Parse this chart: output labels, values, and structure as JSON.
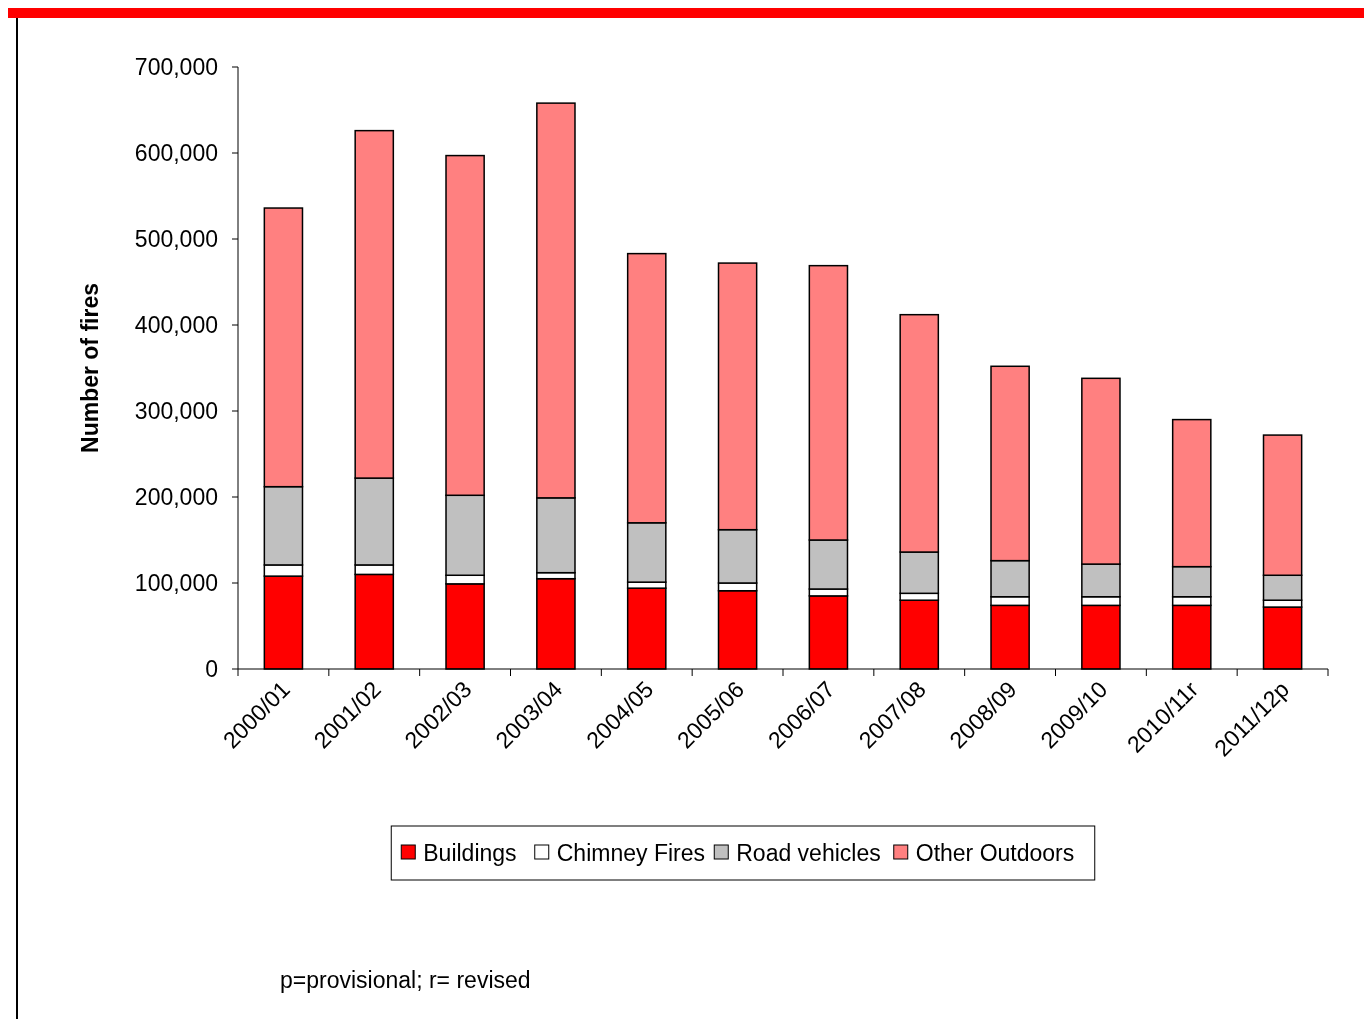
{
  "chart_data": {
    "type": "bar",
    "stacked": true,
    "ylabel": "Number of fires",
    "categories": [
      "2000/01",
      "2001/02",
      "2002/03",
      "2003/04",
      "2004/05",
      "2005/06",
      "2006/07",
      "2007/08",
      "2008/09",
      "2009/10",
      "2010/11r",
      "2011/12p"
    ],
    "series": [
      {
        "name": "Buildings",
        "color": "#ff0000",
        "values": [
          108000,
          110000,
          99000,
          105000,
          94000,
          91000,
          85000,
          80000,
          74000,
          74000,
          74000,
          72000
        ]
      },
      {
        "name": "Chimney Fires",
        "color": "#ffffff",
        "values": [
          13000,
          11000,
          10000,
          7000,
          7000,
          9000,
          8000,
          8000,
          10000,
          10000,
          10000,
          8000
        ]
      },
      {
        "name": "Road vehicles",
        "color": "#c0c0c0",
        "values": [
          91000,
          101000,
          93000,
          87000,
          69000,
          62000,
          57000,
          48000,
          42000,
          38000,
          35000,
          29000
        ]
      },
      {
        "name": "Other Outdoors",
        "color": "#ff8080",
        "values": [
          324000,
          404000,
          395000,
          459000,
          313000,
          310000,
          319000,
          276000,
          226000,
          216000,
          171000,
          163000
        ]
      }
    ],
    "ylim": [
      0,
      700000
    ],
    "yticks": [
      {
        "value": 0,
        "label": "0"
      },
      {
        "value": 100000,
        "label": "100,000"
      },
      {
        "value": 200000,
        "label": "200,000"
      },
      {
        "value": 300000,
        "label": "300,000"
      },
      {
        "value": 400000,
        "label": "400,000"
      },
      {
        "value": 500000,
        "label": "500,000"
      },
      {
        "value": 600000,
        "label": "600,000"
      },
      {
        "value": 700000,
        "label": "700,000"
      }
    ],
    "legend": "bottom",
    "grid": false,
    "annotations": [
      "p=provisional; r= revised"
    ]
  }
}
